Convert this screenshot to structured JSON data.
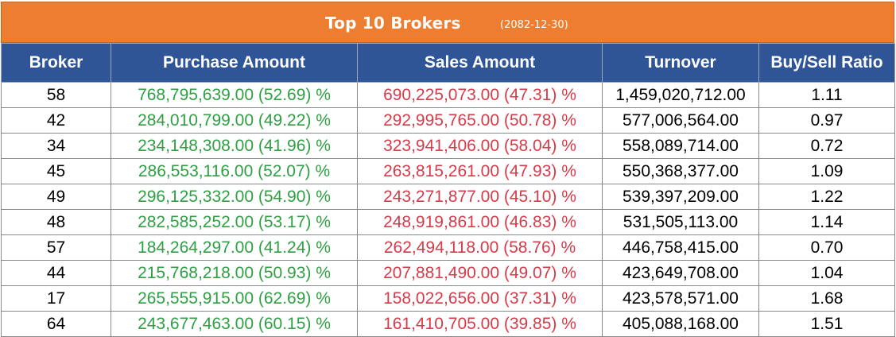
{
  "title": "Top 10 Brokers",
  "date": "(2082-12-30)",
  "columns": [
    "Broker",
    "Purchase Amount",
    "Sales Amount",
    "Turnover",
    "Buy/Sell Ratio"
  ],
  "colors": {
    "header_orange": "#ed7d31",
    "header_blue": "#2f5597",
    "buy_green": "#2ea043",
    "sell_red": "#d63b4a"
  },
  "rows": [
    {
      "broker": "58",
      "purchase": "768,795,639.00 (52.69) %",
      "sales": "690,225,073.00 (47.31) %",
      "turnover": "1,459,020,712.00",
      "ratio": "1.11"
    },
    {
      "broker": "42",
      "purchase": "284,010,799.00 (49.22) %",
      "sales": "292,995,765.00 (50.78) %",
      "turnover": "577,006,564.00",
      "ratio": "0.97"
    },
    {
      "broker": "34",
      "purchase": "234,148,308.00 (41.96) %",
      "sales": "323,941,406.00 (58.04) %",
      "turnover": "558,089,714.00",
      "ratio": "0.72"
    },
    {
      "broker": "45",
      "purchase": "286,553,116.00 (52.07) %",
      "sales": "263,815,261.00 (47.93) %",
      "turnover": "550,368,377.00",
      "ratio": "1.09"
    },
    {
      "broker": "49",
      "purchase": "296,125,332.00 (54.90) %",
      "sales": "243,271,877.00 (45.10) %",
      "turnover": "539,397,209.00",
      "ratio": "1.22"
    },
    {
      "broker": "48",
      "purchase": "282,585,252.00 (53.17) %",
      "sales": "248,919,861.00 (46.83) %",
      "turnover": "531,505,113.00",
      "ratio": "1.14"
    },
    {
      "broker": "57",
      "purchase": "184,264,297.00 (41.24) %",
      "sales": "262,494,118.00 (58.76) %",
      "turnover": "446,758,415.00",
      "ratio": "0.70"
    },
    {
      "broker": "44",
      "purchase": "215,768,218.00 (50.93) %",
      "sales": "207,881,490.00 (49.07) %",
      "turnover": "423,649,708.00",
      "ratio": "1.04"
    },
    {
      "broker": "17",
      "purchase": "265,555,915.00 (62.69) %",
      "sales": "158,022,656.00 (37.31) %",
      "turnover": "423,578,571.00",
      "ratio": "1.68"
    },
    {
      "broker": "64",
      "purchase": "243,677,463.00 (60.15) %",
      "sales": "161,410,705.00 (39.85) %",
      "turnover": "405,088,168.00",
      "ratio": "1.51"
    }
  ]
}
